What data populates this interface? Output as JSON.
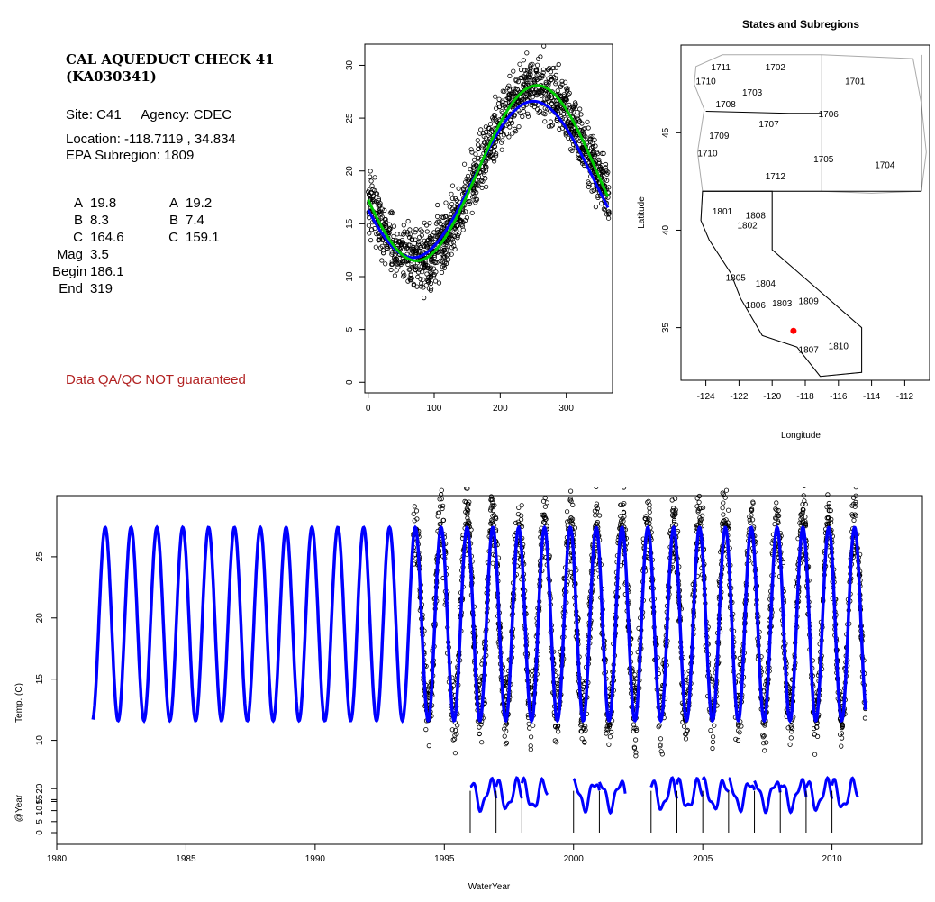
{
  "panel": {
    "title_line1": "CAL AQUEDUCT CHECK 41",
    "title_line2": "(KA030341)",
    "site_label": "Site: C41",
    "agency_label": "Agency: CDEC",
    "location_label": "Location: -118.7119 , 34.834",
    "subregion_label": "EPA Subregion: 1809",
    "params_left": [
      {
        "label": "A",
        "value": "19.8"
      },
      {
        "label": "B",
        "value": "8.3"
      },
      {
        "label": "C",
        "value": "164.6"
      },
      {
        "label": "Mag",
        "value": "3.5"
      },
      {
        "label": "Begin",
        "value": "186.1"
      },
      {
        "label": "End",
        "value": "319"
      }
    ],
    "params_right": [
      {
        "label": "A",
        "value": "19.2"
      },
      {
        "label": "B",
        "value": "7.4"
      },
      {
        "label": "C",
        "value": "159.1"
      }
    ],
    "disclaimer": "Data QA/QC NOT guaranteed",
    "disclaimer_color": "#b22222"
  },
  "chart_data": [
    {
      "type": "scatter",
      "title": "",
      "xlabel": "",
      "ylabel": "",
      "xlim": [
        -5,
        370
      ],
      "ylim": [
        -1,
        32
      ],
      "x_ticks": [
        0,
        100,
        200,
        300
      ],
      "y_ticks": [
        0,
        5,
        10,
        15,
        20,
        25,
        30
      ],
      "grid": false,
      "points_description": "daily water temperature vs day of water year",
      "fits": [
        {
          "color": "#0000ff",
          "A": 19.2,
          "B": 7.4,
          "C": 159.1
        },
        {
          "color": "#00cc00",
          "A": 19.8,
          "B": 8.3,
          "C": 164.6
        }
      ]
    },
    {
      "type": "map",
      "title": "States and Subregions",
      "xlabel": "Longitude",
      "ylabel": "Latitude",
      "xlim": [
        -125.5,
        -110.5
      ],
      "ylim": [
        32.3,
        49.5
      ],
      "x_ticks": [
        -124,
        -122,
        -120,
        -118,
        -116,
        -114,
        -112
      ],
      "y_ticks": [
        35,
        40,
        45
      ],
      "site": {
        "lon": -118.7119,
        "lat": 34.834,
        "color": "#ff0000"
      },
      "region_labels": [
        {
          "text": "1702",
          "lon": -119.8,
          "lat": 48.2
        },
        {
          "text": "1701",
          "lon": -115.0,
          "lat": 47.5
        },
        {
          "text": "1711",
          "lon": -123.1,
          "lat": 48.2
        },
        {
          "text": "1710",
          "lon": -124.0,
          "lat": 47.5
        },
        {
          "text": "1703",
          "lon": -121.2,
          "lat": 46.9
        },
        {
          "text": "1708",
          "lon": -122.8,
          "lat": 46.3
        },
        {
          "text": "1706",
          "lon": -116.6,
          "lat": 45.8
        },
        {
          "text": "1707",
          "lon": -120.2,
          "lat": 45.3
        },
        {
          "text": "1709",
          "lon": -123.2,
          "lat": 44.7
        },
        {
          "text": "1710",
          "lon": -123.9,
          "lat": 43.8
        },
        {
          "text": "1705",
          "lon": -116.9,
          "lat": 43.5
        },
        {
          "text": "1704",
          "lon": -113.2,
          "lat": 43.2
        },
        {
          "text": "1712",
          "lon": -119.8,
          "lat": 42.6
        },
        {
          "text": "1801",
          "lon": -123.0,
          "lat": 40.8
        },
        {
          "text": "1808",
          "lon": -121.0,
          "lat": 40.6
        },
        {
          "text": "1802",
          "lon": -121.5,
          "lat": 40.1
        },
        {
          "text": "1805",
          "lon": -122.2,
          "lat": 37.4
        },
        {
          "text": "1804",
          "lon": -120.4,
          "lat": 37.1
        },
        {
          "text": "1809",
          "lon": -117.8,
          "lat": 36.2
        },
        {
          "text": "1806",
          "lon": -121.0,
          "lat": 36.0
        },
        {
          "text": "1803",
          "lon": -119.4,
          "lat": 36.1
        },
        {
          "text": "1810",
          "lon": -116.0,
          "lat": 33.9
        },
        {
          "text": "1807",
          "lon": -117.8,
          "lat": 33.7
        }
      ]
    },
    {
      "type": "line",
      "title": "",
      "xlabel": "WaterYear",
      "ylabel": "Temp. (C)",
      "xlim": [
        1980,
        2013.5
      ],
      "ylim": [
        1.5,
        30
      ],
      "x_ticks": [
        1980,
        1985,
        1990,
        1995,
        2000,
        2005,
        2010
      ],
      "y_ticks": [
        5,
        10,
        15,
        20,
        25
      ],
      "series": [
        {
          "color": "#0000ff",
          "x_range": [
            1981.4,
            2011.3
          ],
          "mean": 19.5,
          "amplitude": 7.9
        },
        {
          "color": "#000000",
          "marker": "open-circle",
          "x_range": [
            1993.8,
            2011.3
          ]
        }
      ],
      "sub_axis_label": "@Year",
      "sub_y_ticks": [
        0,
        5,
        10,
        15,
        20
      ],
      "sub_series_years": [
        1996,
        1997,
        1998,
        2000,
        2001,
        2003,
        2004,
        2005,
        2006,
        2007,
        2008,
        2009,
        2010
      ]
    }
  ]
}
